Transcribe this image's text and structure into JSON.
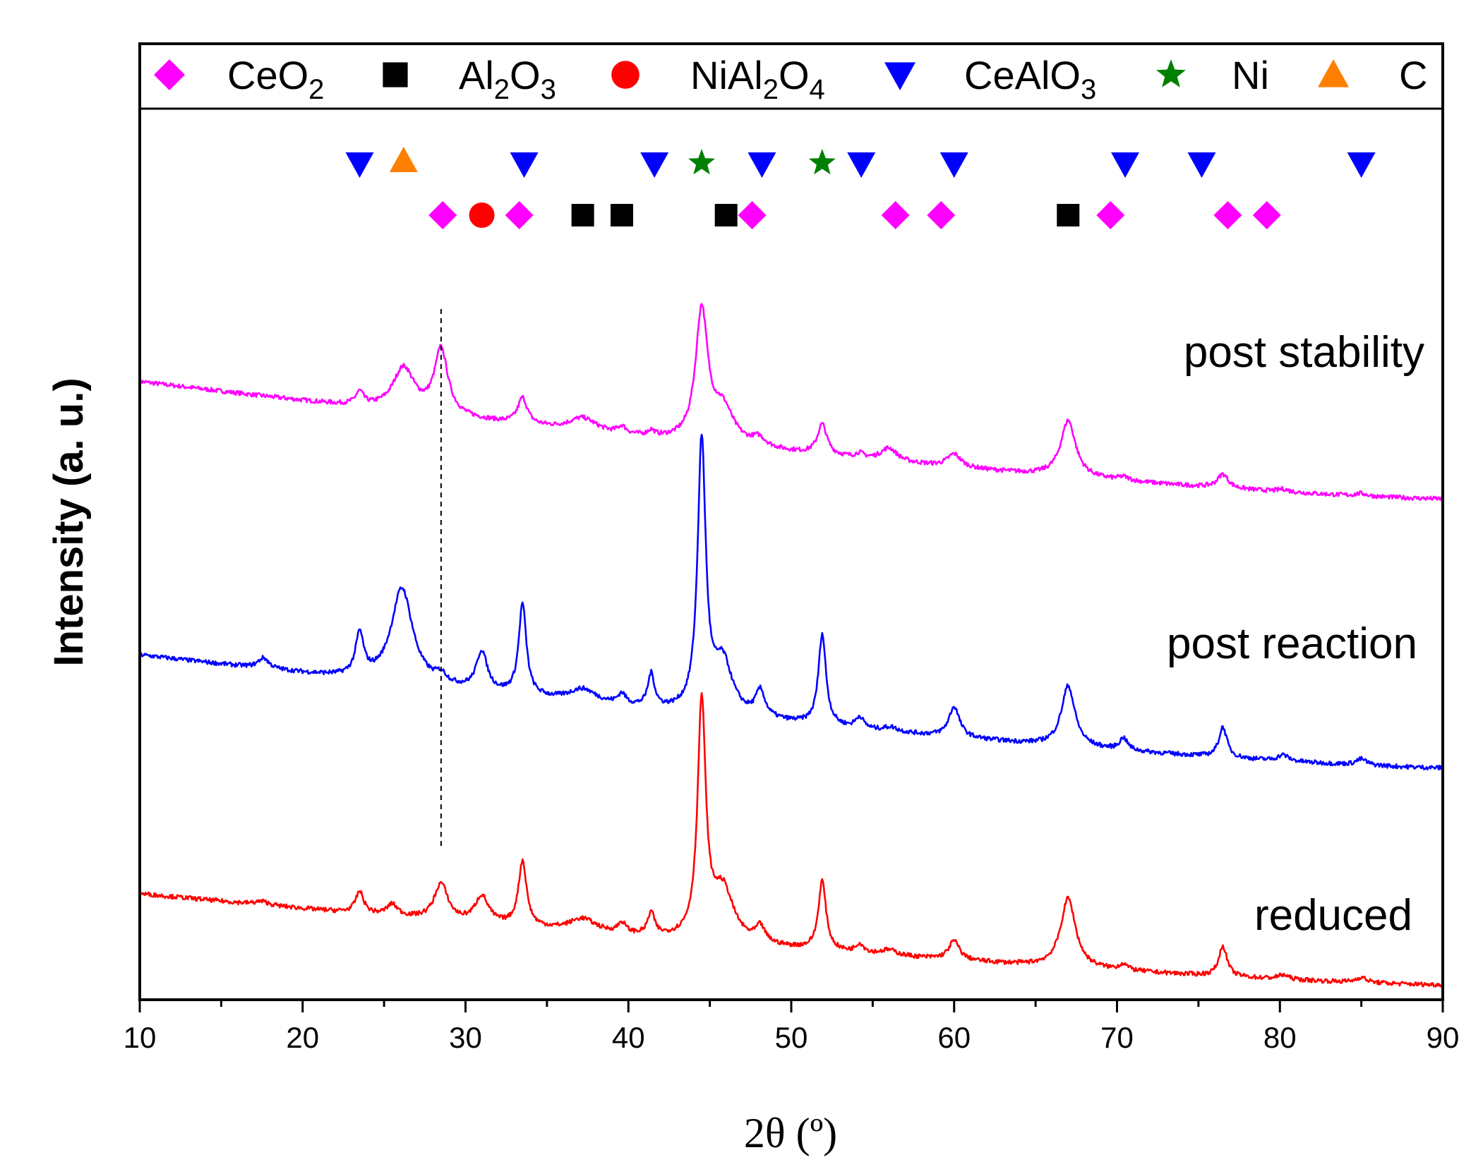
{
  "chart_data": {
    "type": "line",
    "title": "",
    "xlabel": "2θ (º)",
    "ylabel": "Intensity (a. u.)",
    "xlim": [
      10,
      90
    ],
    "xticks": [
      10,
      20,
      30,
      40,
      50,
      60,
      70,
      80,
      90
    ],
    "ylim": [
      0,
      100
    ],
    "legend": [
      {
        "name": "CeO",
        "sub1": "2",
        "mid": "",
        "sub2": "",
        "marker": "diamond",
        "color": "#ff00ff"
      },
      {
        "name": "Al",
        "sub1": "2",
        "mid": "O",
        "sub2": "3",
        "marker": "square",
        "color": "#000000"
      },
      {
        "name": "NiAl",
        "sub1": "2",
        "mid": "O",
        "sub2": "4",
        "marker": "circle",
        "color": "#ff0000"
      },
      {
        "name": "CeAlO",
        "sub1": "3",
        "mid": "",
        "sub2": "",
        "marker": "triangle-down",
        "color": "#0000ff"
      },
      {
        "name": "Ni",
        "sub1": "",
        "mid": "",
        "sub2": "",
        "marker": "star",
        "color": "#008000"
      },
      {
        "name": "C",
        "sub1": "",
        "mid": "",
        "sub2": "",
        "marker": "triangle-up",
        "color": "#ff8000"
      }
    ],
    "phase_markers": {
      "CeAlO3": [
        23.5,
        33.6,
        41.6,
        48.2,
        54.3,
        60.0,
        70.5,
        75.2,
        85.0
      ],
      "C": [
        26.2
      ],
      "Ni": [
        44.5,
        51.9
      ],
      "CeO2": [
        28.6,
        33.3,
        47.6,
        56.4,
        59.2,
        69.6,
        76.8,
        79.2
      ],
      "NiAl2O4": [
        31.0
      ],
      "Al2O3": [
        37.2,
        39.6,
        46.0,
        67.0
      ]
    },
    "reference_line_x": 28.5,
    "series": [
      {
        "name": "post stability",
        "color": "#ff00ff",
        "base": 70.0,
        "end": 56.5,
        "peaks": [
          [
            23.5,
            1.5,
            0.3
          ],
          [
            26.2,
            5.0,
            0.8
          ],
          [
            28.5,
            7.5,
            0.5
          ],
          [
            33.5,
            3.0,
            0.35
          ],
          [
            37.2,
            1.5,
            1.0
          ],
          [
            39.6,
            0.8,
            0.3
          ],
          [
            41.4,
            0.6,
            0.25
          ],
          [
            44.5,
            15.0,
            0.45
          ],
          [
            45.8,
            4.0,
            0.8
          ],
          [
            48.0,
            1.0,
            0.5
          ],
          [
            51.9,
            3.5,
            0.35
          ],
          [
            54.2,
            0.5,
            0.3
          ],
          [
            56.0,
            1.5,
            0.6
          ],
          [
            60.0,
            1.5,
            0.5
          ],
          [
            67.0,
            6.5,
            0.55
          ],
          [
            70.4,
            0.4,
            0.4
          ],
          [
            76.5,
            1.6,
            0.4
          ],
          [
            80.2,
            0.3,
            0.4
          ],
          [
            85.0,
            0.3,
            0.4
          ]
        ]
      },
      {
        "name": "post reaction",
        "color": "#0000ff",
        "base": 38.5,
        "end": 25.5,
        "peaks": [
          [
            17.6,
            1.2,
            0.4
          ],
          [
            23.5,
            4.8,
            0.3
          ],
          [
            26.1,
            11.0,
            0.8
          ],
          [
            28.5,
            1.0,
            0.4
          ],
          [
            31.0,
            4.5,
            0.4
          ],
          [
            33.5,
            10.5,
            0.28
          ],
          [
            37.2,
            1.5,
            1.0
          ],
          [
            39.6,
            1.2,
            0.3
          ],
          [
            41.4,
            3.8,
            0.25
          ],
          [
            44.5,
            31.0,
            0.3
          ],
          [
            45.8,
            6.0,
            0.7
          ],
          [
            48.1,
            3.0,
            0.35
          ],
          [
            51.9,
            10.5,
            0.28
          ],
          [
            54.2,
            1.3,
            0.3
          ],
          [
            56.1,
            0.5,
            0.5
          ],
          [
            60.0,
            3.5,
            0.4
          ],
          [
            67.0,
            7.0,
            0.5
          ],
          [
            70.4,
            1.4,
            0.3
          ],
          [
            76.5,
            3.5,
            0.3
          ],
          [
            80.2,
            0.7,
            0.4
          ],
          [
            85.0,
            0.7,
            0.4
          ]
        ]
      },
      {
        "name": "reduced",
        "color": "#ff0000",
        "base": 11.0,
        "end": 0.5,
        "peaks": [
          [
            17.5,
            0.4,
            0.5
          ],
          [
            23.5,
            2.5,
            0.3
          ],
          [
            25.5,
            1.3,
            0.4
          ],
          [
            28.5,
            4.2,
            0.5
          ],
          [
            31.0,
            3.1,
            0.5
          ],
          [
            33.5,
            7.5,
            0.3
          ],
          [
            37.2,
            1.5,
            1.0
          ],
          [
            39.6,
            1.2,
            0.3
          ],
          [
            41.4,
            2.6,
            0.25
          ],
          [
            44.5,
            27.0,
            0.3
          ],
          [
            45.8,
            6.0,
            0.8
          ],
          [
            48.1,
            1.8,
            0.35
          ],
          [
            51.9,
            8.0,
            0.28
          ],
          [
            54.2,
            1.0,
            0.3
          ],
          [
            56.0,
            0.6,
            0.6
          ],
          [
            60.0,
            2.2,
            0.4
          ],
          [
            67.0,
            8.0,
            0.55
          ],
          [
            70.4,
            0.7,
            0.3
          ],
          [
            76.5,
            3.5,
            0.3
          ],
          [
            80.2,
            0.5,
            0.4
          ],
          [
            85.0,
            0.6,
            0.4
          ]
        ]
      }
    ]
  }
}
